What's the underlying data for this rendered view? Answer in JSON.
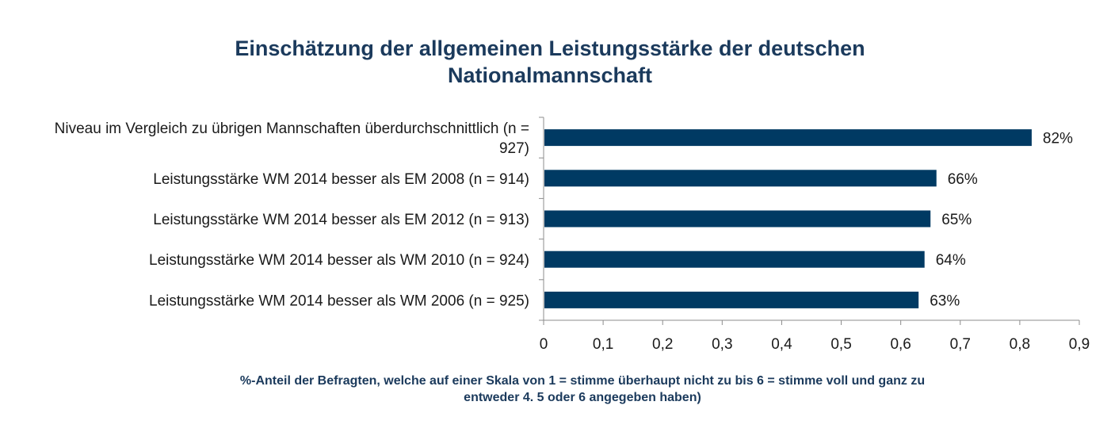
{
  "chart_data": {
    "type": "bar",
    "orientation": "horizontal",
    "title_lines": [
      "Einschätzung der allgemeinen Leistungsstärke der deutschen",
      "Nationalmannschaft"
    ],
    "categories": [
      [
        "Niveau im Vergleich zu übrigen Mannschaften überdurchschnittlich (n =",
        "927)"
      ],
      [
        "Leistungsstärke WM 2014 besser als EM 2008 (n = 914)"
      ],
      [
        "Leistungsstärke WM 2014 besser als EM 2012 (n = 913)"
      ],
      [
        "Leistungsstärke WM 2014 besser als WM 2010 (n = 924)"
      ],
      [
        "Leistungsstärke WM 2014 besser als WM 2006 (n = 925)"
      ]
    ],
    "values": [
      0.82,
      0.66,
      0.65,
      0.64,
      0.63
    ],
    "data_labels": [
      "82%",
      "66%",
      "65%",
      "64%",
      "63%"
    ],
    "xlim": [
      0,
      0.9
    ],
    "x_ticks": [
      "0",
      "0,1",
      "0,2",
      "0,3",
      "0,4",
      "0,5",
      "0,6",
      "0,7",
      "0,8",
      "0,9"
    ],
    "grid": false,
    "legend": "none",
    "bar_color": "#003a63",
    "footnote_lines": [
      "%-Anteil der Befragten, welche auf einer Skala von 1 = stimme überhaupt nicht zu bis 6 = stimme voll und ganz zu",
      "entweder 4. 5 oder 6 angegeben haben)"
    ]
  }
}
